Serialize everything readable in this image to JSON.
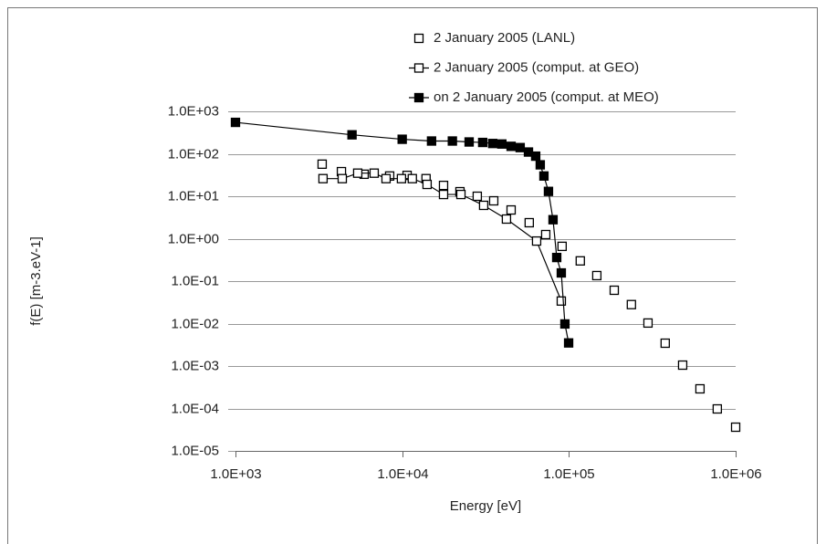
{
  "chart_data": {
    "type": "scatter",
    "x_label": "Energy [eV]",
    "y_label": "f(E) [m-3.eV-1]",
    "xscale": "log",
    "yscale": "log",
    "grid": true,
    "legend": "top-right",
    "xlim": [
      1000,
      1000000
    ],
    "xticks": [
      {
        "value": 1000,
        "label": "1.0E+03"
      },
      {
        "value": 10000,
        "label": "1.0E+04"
      },
      {
        "value": 100000,
        "label": "1.0E+05"
      },
      {
        "value": 1000000,
        "label": "1.0E+06"
      }
    ],
    "ylim": [
      1e-05,
      1000
    ],
    "yticks": [
      {
        "value": 1000,
        "label": "1.0E+03"
      },
      {
        "value": 100,
        "label": "1.0E+02"
      },
      {
        "value": 10,
        "label": "1.0E+01"
      },
      {
        "value": 1,
        "label": "1.0E+00"
      },
      {
        "value": 0.1,
        "label": "1.0E-01"
      },
      {
        "value": 0.01,
        "label": "1.0E-02"
      },
      {
        "value": 0.001,
        "label": "1.0E-03"
      },
      {
        "value": 0.0001,
        "label": "1.0E-04"
      },
      {
        "value": 1e-05,
        "label": "1.0E-05"
      }
    ],
    "series": [
      {
        "name": "2 January 2005 (LANL)",
        "color": "#000000",
        "marker_fill": "#ffffff",
        "line": false,
        "x": [
          3310,
          4320,
          5910,
          8410,
          10700,
          13900,
          17700,
          22200,
          28200,
          35400,
          45000,
          57800,
          72600,
          91000,
          117000,
          147000,
          187000,
          237000,
          298000,
          378000,
          481000,
          611000,
          776000,
          1000000
        ],
        "values": [
          57,
          38,
          33,
          30,
          31,
          26,
          18,
          12.8,
          10,
          7.8,
          4.75,
          2.38,
          1.25,
          0.66,
          0.3,
          0.135,
          0.061,
          0.028,
          0.0103,
          0.00345,
          0.00105,
          0.00029,
          9.75e-05,
          3.62e-05
        ]
      },
      {
        "name": "2 January 2005 (comput. at GEO)",
        "color": "#000000",
        "marker_fill": "#ffffff",
        "line": true,
        "x": [
          3350,
          4370,
          5410,
          6790,
          8000,
          9900,
          11500,
          14100,
          17700,
          22500,
          30800,
          42200,
          64000,
          90000
        ],
        "values": [
          26,
          26,
          35,
          35,
          26,
          26,
          26,
          19,
          11,
          11,
          6.1,
          2.9,
          0.88,
          0.034
        ]
      },
      {
        "name": "on 2 January 2005 (comput. at MEO)",
        "color": "#000000",
        "marker_fill": "#000000",
        "line": true,
        "x": [
          1000,
          5000,
          10000,
          15000,
          20000,
          25200,
          30400,
          34900,
          39600,
          45000,
          51000,
          57200,
          63200,
          67300,
          70800,
          75400,
          80300,
          84500,
          90000,
          94600,
          99600
        ],
        "values": [
          550,
          280,
          220,
          200,
          200,
          190,
          185,
          175,
          170,
          150,
          140,
          110,
          88,
          55,
          30,
          13,
          2.8,
          0.36,
          0.156,
          0.0098,
          0.0035
        ]
      }
    ]
  }
}
